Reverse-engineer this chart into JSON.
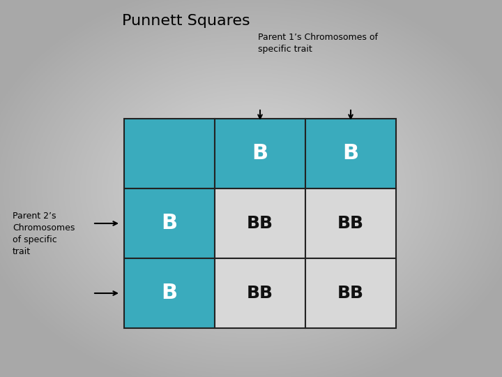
{
  "title": "Punnett Squares",
  "title_fontsize": 16,
  "parent1_label": "Parent 1’s Chromosomes of\nspecific trait",
  "parent2_label": "Parent 2’s\nChromosomes\nof specific\ntrait",
  "teal_color": "#3aabbd",
  "light_color": "#d8d8d8",
  "grid_color": "#222222",
  "white_text": "#ffffff",
  "black_text": "#111111",
  "cells": [
    [
      "",
      "B",
      "B"
    ],
    [
      "B",
      "BB",
      "BB"
    ],
    [
      "B",
      "BB",
      "BB"
    ]
  ],
  "cell_colors": [
    [
      "teal",
      "teal",
      "teal"
    ],
    [
      "teal",
      "light",
      "light"
    ],
    [
      "teal",
      "light",
      "light"
    ]
  ],
  "cell_text_colors": [
    [
      "white",
      "white",
      "white"
    ],
    [
      "white",
      "black",
      "black"
    ],
    [
      "white",
      "black",
      "black"
    ]
  ]
}
